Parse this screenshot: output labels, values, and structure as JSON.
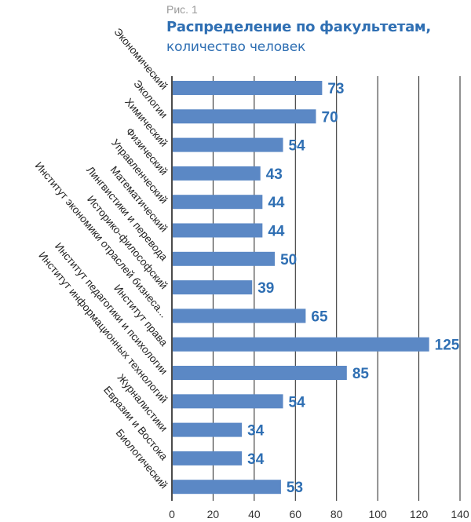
{
  "chart_data": {
    "type": "bar",
    "orientation": "horizontal",
    "figure_label": "Рис. 1",
    "title": "Распределение по факультетам,",
    "subtitle": "количество человек",
    "categories": [
      "Экономический",
      "Экологии",
      "Химический",
      "Физический",
      "Управленческий",
      "Математический",
      "Лингвистики и перевода",
      "Историко-философский",
      "Институт экономики отраслей бизнеса...",
      "Институт права",
      "Институт педагогики и психологии",
      "Институт информационных технологий",
      "Журналистики",
      "Евразии и Востока",
      "Биологический"
    ],
    "values": [
      73,
      70,
      54,
      43,
      44,
      44,
      50,
      39,
      65,
      125,
      85,
      54,
      34,
      34,
      53
    ],
    "xlim": [
      0,
      140
    ],
    "xticks": [
      0,
      20,
      40,
      60,
      80,
      100,
      120,
      140
    ],
    "grid": true,
    "legend": "none",
    "colors": {
      "bar": "#5b88c5",
      "label": "#2f6fb3",
      "title": "#2f6fb3"
    }
  }
}
